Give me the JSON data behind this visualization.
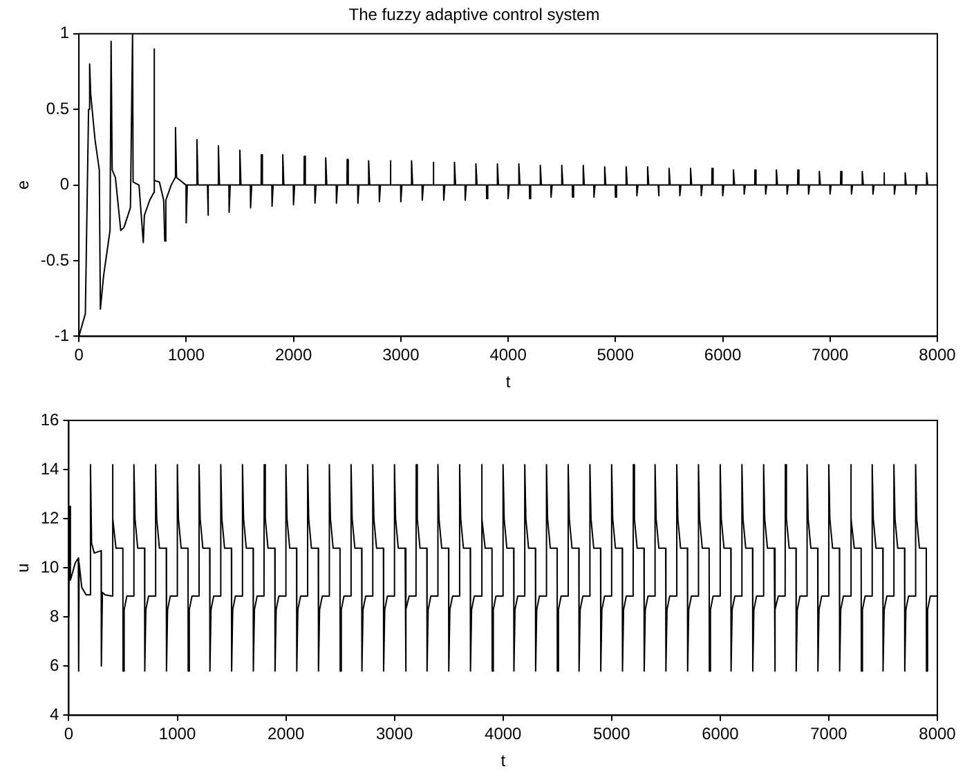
{
  "chart_data": [
    {
      "type": "line",
      "title": "The fuzzy adaptive control system",
      "xlabel": "t",
      "ylabel": "e",
      "xlim": [
        0,
        8000
      ],
      "xticks": [
        0,
        1000,
        2000,
        3000,
        4000,
        5000,
        6000,
        7000,
        8000
      ],
      "ylim": [
        -1,
        1
      ],
      "yticks": [
        -1,
        -0.5,
        0,
        0.5,
        1
      ],
      "grid": false,
      "marker": "none",
      "line_style": "solid",
      "series": [
        {
          "color": "#000000",
          "x": [
            0,
            60,
            90,
            100,
            110,
            150,
            190,
            200,
            230,
            290,
            300,
            310,
            340,
            390,
            420,
            480,
            500,
            505,
            560,
            600,
            610,
            660,
            698,
            700,
            705,
            750,
            790,
            800,
            810,
            860,
            898,
            900,
            910,
            998,
            1000,
            1010,
            1098,
            1100,
            1110,
            1198,
            1200,
            1210,
            1298,
            1300,
            1310,
            1398,
            1400,
            1410,
            1498,
            1500,
            1510,
            1598,
            1600,
            1610,
            1698,
            1700,
            1710,
            1798,
            1800,
            1810,
            1898,
            1900,
            1910,
            1998,
            2000,
            2010,
            2098,
            2100,
            2110,
            2198,
            2200,
            2210,
            2298,
            2300,
            2310,
            2398,
            2400,
            2410,
            2498,
            2500,
            2510,
            2598,
            2600,
            2610,
            2698,
            2700,
            2710,
            2798,
            2800,
            2810,
            2898,
            2900,
            2910,
            2998,
            3000,
            3010,
            3098,
            3100,
            3110,
            3198,
            3200,
            3210,
            3298,
            3300,
            3310,
            3398,
            3400,
            3410,
            3498,
            3500,
            3510,
            3598,
            3600,
            3610,
            3698,
            3700,
            3710,
            3798,
            3800,
            3810,
            3898,
            3900,
            3910,
            3998,
            4000,
            4010,
            4098,
            4100,
            4110,
            4198,
            4200,
            4210,
            4298,
            4300,
            4310,
            4398,
            4400,
            4410,
            4498,
            4500,
            4510,
            4598,
            4600,
            4610,
            4698,
            4700,
            4710,
            4798,
            4800,
            4810,
            4898,
            4900,
            4910,
            4998,
            5000,
            5010,
            5098,
            5100,
            5110,
            5198,
            5200,
            5210,
            5298,
            5300,
            5310,
            5398,
            5400,
            5410,
            5498,
            5500,
            5510,
            5598,
            5600,
            5610,
            5698,
            5700,
            5710,
            5798,
            5800,
            5810,
            5898,
            5900,
            5910,
            5998,
            6000,
            6010,
            6098,
            6100,
            6110,
            6198,
            6200,
            6210,
            6298,
            6300,
            6310,
            6398,
            6400,
            6410,
            6498,
            6500,
            6510,
            6598,
            6600,
            6610,
            6698,
            6700,
            6710,
            6798,
            6800,
            6810,
            6898,
            6900,
            6910,
            6998,
            7000,
            7010,
            7098,
            7100,
            7110,
            7198,
            7200,
            7210,
            7298,
            7300,
            7310,
            7398,
            7400,
            7410,
            7498,
            7500,
            7510,
            7598,
            7600,
            7610,
            7698,
            7700,
            7710,
            7798,
            7800,
            7810,
            7898,
            7900,
            7910,
            8000
          ],
          "values": [
            -1,
            -0.85,
            0.5,
            0.8,
            0.6,
            0.3,
            0.1,
            -0.82,
            -0.6,
            -0.3,
            0.95,
            0.1,
            0.05,
            -0.3,
            -0.28,
            -0.15,
            1,
            0.02,
            0,
            -0.38,
            -0.2,
            -0.1,
            -0.05,
            0.9,
            0.03,
            0.02,
            -0.1,
            -0.37,
            -0.1,
            0,
            0.05,
            0.38,
            0.05,
            0,
            -0.25,
            0,
            0,
            0.3,
            0,
            0,
            -0.2,
            0,
            0,
            0.26,
            0,
            0,
            -0.18,
            0,
            0,
            0.23,
            0,
            0,
            -0.15,
            0,
            0,
            0.2,
            0,
            0,
            -0.14,
            0,
            0,
            0.2,
            0,
            0,
            -0.13,
            0,
            0,
            0.19,
            0,
            0,
            -0.12,
            0,
            0,
            0.18,
            0,
            0,
            -0.12,
            0,
            0,
            0.17,
            0,
            0,
            -0.12,
            0,
            0,
            0.16,
            0,
            0,
            -0.11,
            0,
            0,
            0.16,
            0,
            0,
            -0.11,
            0,
            0,
            0.16,
            0,
            0,
            -0.1,
            0,
            0,
            0.15,
            0,
            0,
            -0.1,
            0,
            0,
            0.15,
            0,
            0,
            -0.1,
            0,
            0,
            0.14,
            0,
            0,
            -0.09,
            0,
            0,
            0.14,
            0,
            0,
            -0.09,
            0,
            0,
            0.14,
            0,
            0,
            -0.09,
            0,
            0,
            0.13,
            0,
            0,
            -0.08,
            0,
            0,
            0.13,
            0,
            0,
            -0.08,
            0,
            0,
            0.13,
            0,
            0,
            -0.08,
            0,
            0,
            0.12,
            0,
            0,
            -0.08,
            0,
            0,
            0.12,
            0,
            0,
            -0.07,
            0,
            0,
            0.12,
            0,
            0,
            -0.07,
            0,
            0,
            0.11,
            0,
            0,
            -0.07,
            0,
            0,
            0.11,
            0,
            0,
            -0.07,
            0,
            0,
            0.11,
            0,
            0,
            -0.07,
            0,
            0,
            0.1,
            0,
            0,
            -0.06,
            0,
            0,
            0.1,
            0,
            0,
            -0.06,
            0,
            0,
            0.1,
            0,
            0,
            -0.06,
            0,
            0,
            0.1,
            0,
            0,
            -0.06,
            0,
            0,
            0.09,
            0,
            0,
            -0.06,
            0,
            0,
            0.09,
            0,
            0,
            -0.06,
            0,
            0,
            0.09,
            0,
            0,
            -0.06,
            0,
            0,
            0.08,
            0,
            0,
            -0.06,
            0,
            0,
            0.08,
            0,
            0,
            -0.06,
            0,
            0,
            0.08,
            0,
            0
          ]
        }
      ]
    },
    {
      "type": "line",
      "xlabel": "t",
      "ylabel": "u",
      "xlim": [
        0,
        8000
      ],
      "xticks": [
        0,
        1000,
        2000,
        3000,
        4000,
        5000,
        6000,
        7000,
        8000
      ],
      "ylim": [
        4,
        16
      ],
      "yticks": [
        4,
        6,
        8,
        10,
        12,
        14,
        16
      ],
      "grid": false,
      "marker": "none",
      "line_style": "solid",
      "series": [
        {
          "color": "#000000",
          "x": [
            0,
            5,
            15,
            60,
            88,
            91,
            95,
            120,
            160,
            198,
            200,
            210,
            235,
            298,
            300,
            310,
            335,
            398,
            400,
            410,
            435,
            498,
            500,
            510,
            535,
            598,
            600,
            610,
            635,
            698,
            700,
            710,
            735,
            798,
            800,
            810,
            835,
            898,
            900,
            910,
            935,
            998,
            1000,
            1010,
            1035,
            1098,
            1100,
            1110,
            1135,
            1198,
            1200,
            1210,
            1235,
            1298,
            1300,
            1310,
            1335,
            1398,
            1400,
            1410,
            1435,
            1498,
            1500,
            1510,
            1535,
            1598,
            1600,
            1610,
            1635,
            1698,
            1700,
            1710,
            1735,
            1798,
            1800,
            1810,
            1835,
            1898,
            1900,
            1910,
            1935,
            1998,
            2000,
            2010,
            2035,
            2098,
            2100,
            2110,
            2135,
            2198,
            2200,
            2210,
            2235,
            2298,
            2300,
            2310,
            2335,
            2398,
            2400,
            2410,
            2435,
            2498,
            2500,
            2510,
            2535,
            2598,
            2600,
            2610,
            2635,
            2698,
            2700,
            2710,
            2735,
            2798,
            2800,
            2810,
            2835,
            2898,
            2900,
            2910,
            2935,
            2998,
            3000,
            3010,
            3035,
            3098,
            3100,
            3110,
            3135,
            3198,
            3200,
            3210,
            3235,
            3298,
            3300,
            3310,
            3335,
            3398,
            3400,
            3410,
            3435,
            3498,
            3500,
            3510,
            3535,
            3598,
            3600,
            3610,
            3635,
            3698,
            3700,
            3710,
            3735,
            3798,
            3800,
            3810,
            3835,
            3898,
            3900,
            3910,
            3935,
            3998,
            4000,
            4010,
            4035,
            4098,
            4100,
            4110,
            4135,
            4198,
            4200,
            4210,
            4235,
            4298,
            4300,
            4310,
            4335,
            4398,
            4400,
            4410,
            4435,
            4498,
            4500,
            4510,
            4535,
            4598,
            4600,
            4610,
            4635,
            4698,
            4700,
            4710,
            4735,
            4798,
            4800,
            4810,
            4835,
            4898,
            4900,
            4910,
            4935,
            4998,
            5000,
            5010,
            5035,
            5098,
            5100,
            5110,
            5135,
            5198,
            5200,
            5210,
            5235,
            5298,
            5300,
            5310,
            5335,
            5398,
            5400,
            5410,
            5435,
            5498,
            5500,
            5510,
            5535,
            5598,
            5600,
            5610,
            5635,
            5698,
            5700,
            5710,
            5735,
            5798,
            5800,
            5810,
            5835,
            5898,
            5900,
            5910,
            5935,
            5998,
            6000,
            6010,
            6035,
            6098,
            6100,
            6110,
            6135,
            6198,
            6200,
            6210,
            6235,
            6298,
            6300,
            6310,
            6335,
            6398,
            6400,
            6410,
            6435,
            6498,
            6500,
            6510,
            6535,
            6598,
            6600,
            6610,
            6635,
            6698,
            6700,
            6710,
            6735,
            6798,
            6800,
            6810,
            6835,
            6898,
            6900,
            6910,
            6935,
            6998,
            7000,
            7010,
            7035,
            7098,
            7100,
            7110,
            7135,
            7198,
            7200,
            7210,
            7235,
            7298,
            7300,
            7310,
            7335,
            7398,
            7400,
            7410,
            7435,
            7498,
            7500,
            7510,
            7535,
            7598,
            7600,
            7610,
            7635,
            7698,
            7700,
            7710,
            7735,
            7798,
            7800,
            7810,
            7835,
            7898,
            7900,
            7910,
            7935,
            7998
          ],
          "values": [
            8,
            12.5,
            9.5,
            10.2,
            10.4,
            5.8,
            10.2,
            9.2,
            8.9,
            8.9,
            14.2,
            11,
            10.6,
            10.7,
            6,
            9,
            8.9,
            8.85,
            14.2,
            12,
            10.8,
            10.8,
            5.8,
            8.3,
            8.85,
            8.85,
            14.2,
            12,
            10.8,
            10.8,
            5.8,
            8.3,
            8.85,
            8.85,
            14.2,
            12,
            10.8,
            10.8,
            5.8,
            8.3,
            8.85,
            8.85,
            14.2,
            12,
            10.8,
            10.8,
            5.8,
            8.3,
            8.85,
            8.85,
            14.2,
            12,
            10.8,
            10.8,
            5.8,
            8.3,
            8.85,
            8.85,
            14.2,
            12,
            10.8,
            10.8,
            5.8,
            8.3,
            8.85,
            8.85,
            14.2,
            12,
            10.8,
            10.8,
            5.8,
            8.3,
            8.85,
            8.85,
            14.2,
            12,
            10.8,
            10.8,
            5.8,
            8.3,
            8.85,
            8.85,
            14.2,
            12,
            10.8,
            10.8,
            5.8,
            8.3,
            8.85,
            8.85,
            14.2,
            12,
            10.8,
            10.8,
            5.8,
            8.3,
            8.85,
            8.85,
            14.2,
            12,
            10.8,
            10.8,
            5.8,
            8.3,
            8.85,
            8.85,
            14.2,
            12,
            10.8,
            10.8,
            5.8,
            8.3,
            8.85,
            8.85,
            14.2,
            12,
            10.8,
            10.8,
            5.8,
            8.3,
            8.85,
            8.85,
            14.2,
            12,
            10.8,
            10.8,
            5.8,
            8.3,
            8.85,
            8.85,
            14.2,
            12,
            10.8,
            10.8,
            5.8,
            8.3,
            8.85,
            8.85,
            14.2,
            12,
            10.8,
            10.8,
            5.8,
            8.3,
            8.85,
            8.85,
            14.2,
            12,
            10.8,
            10.8,
            5.8,
            8.3,
            8.85,
            8.85,
            14.2,
            12,
            10.8,
            10.8,
            5.8,
            8.3,
            8.85,
            8.85,
            14.2,
            12,
            10.8,
            10.8,
            5.8,
            8.3,
            8.85,
            8.85,
            14.2,
            12,
            10.8,
            10.8,
            5.8,
            8.3,
            8.85,
            8.85,
            14.2,
            12,
            10.8,
            10.8,
            5.8,
            8.3,
            8.85,
            8.85,
            14.2,
            12,
            10.8,
            10.8,
            5.8,
            8.3,
            8.85,
            8.85,
            14.2,
            12,
            10.8,
            10.8,
            5.8,
            8.3,
            8.85,
            8.85,
            14.2,
            12,
            10.8,
            10.8,
            5.8,
            8.3,
            8.85,
            8.85,
            14.2,
            12,
            10.8,
            10.8,
            5.8,
            8.3,
            8.85,
            8.85,
            14.2,
            12,
            10.8,
            10.8,
            5.8,
            8.3,
            8.85,
            8.85,
            14.2,
            12,
            10.8,
            10.8,
            5.8,
            8.3,
            8.85,
            8.85,
            14.2,
            12,
            10.8,
            10.8,
            5.8,
            8.3,
            8.85,
            8.85,
            14.2,
            12,
            10.8,
            10.8,
            5.8,
            8.3,
            8.85,
            8.85,
            14.2,
            12,
            10.8,
            10.8,
            5.8,
            8.3,
            8.85,
            8.85,
            14.2,
            12,
            10.8,
            10.8,
            5.8,
            8.3,
            8.85,
            8.85,
            14.2,
            12,
            10.8,
            10.8,
            5.8,
            8.3,
            8.85,
            8.85,
            14.2,
            12,
            10.8,
            10.8,
            5.8,
            8.3,
            8.85,
            8.85,
            14.2,
            12,
            10.8,
            10.8,
            5.8,
            8.3,
            8.85,
            8.85,
            14.2,
            12,
            10.8,
            10.8,
            5.8,
            8.3,
            8.85,
            8.85,
            14.2,
            12,
            10.8,
            10.8,
            5.8,
            8.3,
            8.85,
            8.85,
            14.2,
            12,
            10.8,
            10.8,
            5.8,
            8.3,
            8.85,
            8.85,
            14.2,
            12,
            10.8,
            10.8,
            5.8,
            8.3,
            8.85,
            8.85
          ]
        }
      ]
    }
  ]
}
